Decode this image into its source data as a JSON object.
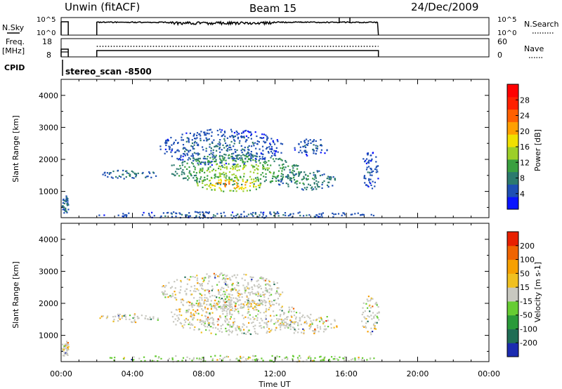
{
  "header": {
    "station": "Unwin (fitACF)",
    "beam": "Beam 15",
    "date": "24/Dec/2009"
  },
  "strip_panels": {
    "nsky": {
      "left_label": "N.Sky",
      "left_ticks": [
        "10^5",
        "10^0"
      ],
      "right_ticks": [
        "10^5",
        "10^0"
      ],
      "right_label": "N.Search"
    },
    "freq": {
      "left_label_1": "Freq.",
      "left_label_2": "[MHz]",
      "left_ticks": [
        "18",
        "8"
      ],
      "right_ticks": [
        "60",
        "0"
      ],
      "right_label": "Nave"
    },
    "cpid": {
      "label": "CPID",
      "program": "stereo_scan -8500"
    }
  },
  "colors": {
    "power_scale": [
      "#0a14ff",
      "#1e4fb4",
      "#2c7a6e",
      "#3aa040",
      "#9ccf28",
      "#f0e000",
      "#ffa000",
      "#ff6000",
      "#ff2000",
      "#ff0000"
    ],
    "velocity_scale": [
      "#1b2bb0",
      "#1f6d55",
      "#2a9a3a",
      "#66cc33",
      "#c8c8c0",
      "#f0c020",
      "#f7a000",
      "#f06400",
      "#e82000"
    ]
  },
  "chart_data": [
    {
      "type": "heatmap",
      "title": "",
      "xlabel": "",
      "ylabel": "Slant Range [km]",
      "x_range": [
        "00:00",
        "24:00"
      ],
      "ylim": [
        180,
        4500
      ],
      "y_ticks": [
        "1000",
        "2000",
        "3000",
        "4000"
      ],
      "colorbar": {
        "label": "Power [dB]",
        "ticks": [
          "4",
          "8",
          "12",
          "16",
          "20",
          "24",
          "28"
        ],
        "range": [
          0,
          32
        ]
      },
      "data_extent_hours": [
        [
          0.0,
          0.4
        ],
        [
          2.0,
          17.8
        ]
      ],
      "echo_regions": [
        {
          "t_start": 0.0,
          "t_end": 0.4,
          "range_min": 300,
          "range_max": 900,
          "power_db": 8
        },
        {
          "t_start": 2.0,
          "t_end": 17.8,
          "range_min": 180,
          "range_max": 400,
          "power_db": 6
        },
        {
          "t_start": 2.0,
          "t_end": 5.5,
          "range_min": 1400,
          "range_max": 1700,
          "power_db": 8
        },
        {
          "t_start": 5.5,
          "t_end": 12.5,
          "range_min": 1800,
          "range_max": 3000,
          "power_db": 6
        },
        {
          "t_start": 6.0,
          "t_end": 13.5,
          "range_min": 1200,
          "range_max": 2200,
          "power_db": 16
        },
        {
          "t_start": 7.5,
          "t_end": 11.5,
          "range_min": 1000,
          "range_max": 1500,
          "power_db": 26
        },
        {
          "t_start": 12.0,
          "t_end": 15.5,
          "range_min": 1050,
          "range_max": 1700,
          "power_db": 10
        },
        {
          "t_start": 13.0,
          "t_end": 15.0,
          "range_min": 2100,
          "range_max": 2700,
          "power_db": 6
        },
        {
          "t_start": 16.8,
          "t_end": 17.8,
          "range_min": 1000,
          "range_max": 2300,
          "power_db": 5
        }
      ]
    },
    {
      "type": "heatmap",
      "title": "",
      "xlabel": "Time UT",
      "ylabel": "Slant Range [km]",
      "x_range": [
        "00:00",
        "24:00"
      ],
      "x_ticks": [
        "00:00",
        "04:00",
        "08:00",
        "12:00",
        "16:00",
        "20:00",
        "00:00"
      ],
      "ylim": [
        180,
        4500
      ],
      "y_ticks": [
        "1000",
        "2000",
        "3000",
        "4000"
      ],
      "colorbar": {
        "label": "Velocity [m s-1]",
        "ticks": [
          "200",
          "100",
          "50",
          "15",
          "-15",
          "-50",
          "-100",
          "-200"
        ],
        "range": [
          -300,
          300
        ]
      },
      "data_extent_hours": [
        [
          0.0,
          0.4
        ],
        [
          2.0,
          17.8
        ]
      ],
      "echo_regions": [
        {
          "t_start": 0.0,
          "t_end": 0.4,
          "range_min": 300,
          "range_max": 900,
          "velocity": 0
        },
        {
          "t_start": 2.0,
          "t_end": 17.8,
          "range_min": 180,
          "range_max": 400,
          "velocity": 20
        },
        {
          "t_start": 2.0,
          "t_end": 5.5,
          "range_min": 1400,
          "range_max": 1700,
          "velocity": 0
        },
        {
          "t_start": 5.5,
          "t_end": 12.5,
          "range_min": 1800,
          "range_max": 3000,
          "velocity": -30
        },
        {
          "t_start": 6.0,
          "t_end": 13.5,
          "range_min": 1000,
          "range_max": 2200,
          "velocity": 0
        },
        {
          "t_start": 12.0,
          "t_end": 15.5,
          "range_min": 1050,
          "range_max": 1700,
          "velocity": 5
        },
        {
          "t_start": 16.8,
          "t_end": 17.8,
          "range_min": 1000,
          "range_max": 2300,
          "velocity": 0
        }
      ]
    }
  ]
}
